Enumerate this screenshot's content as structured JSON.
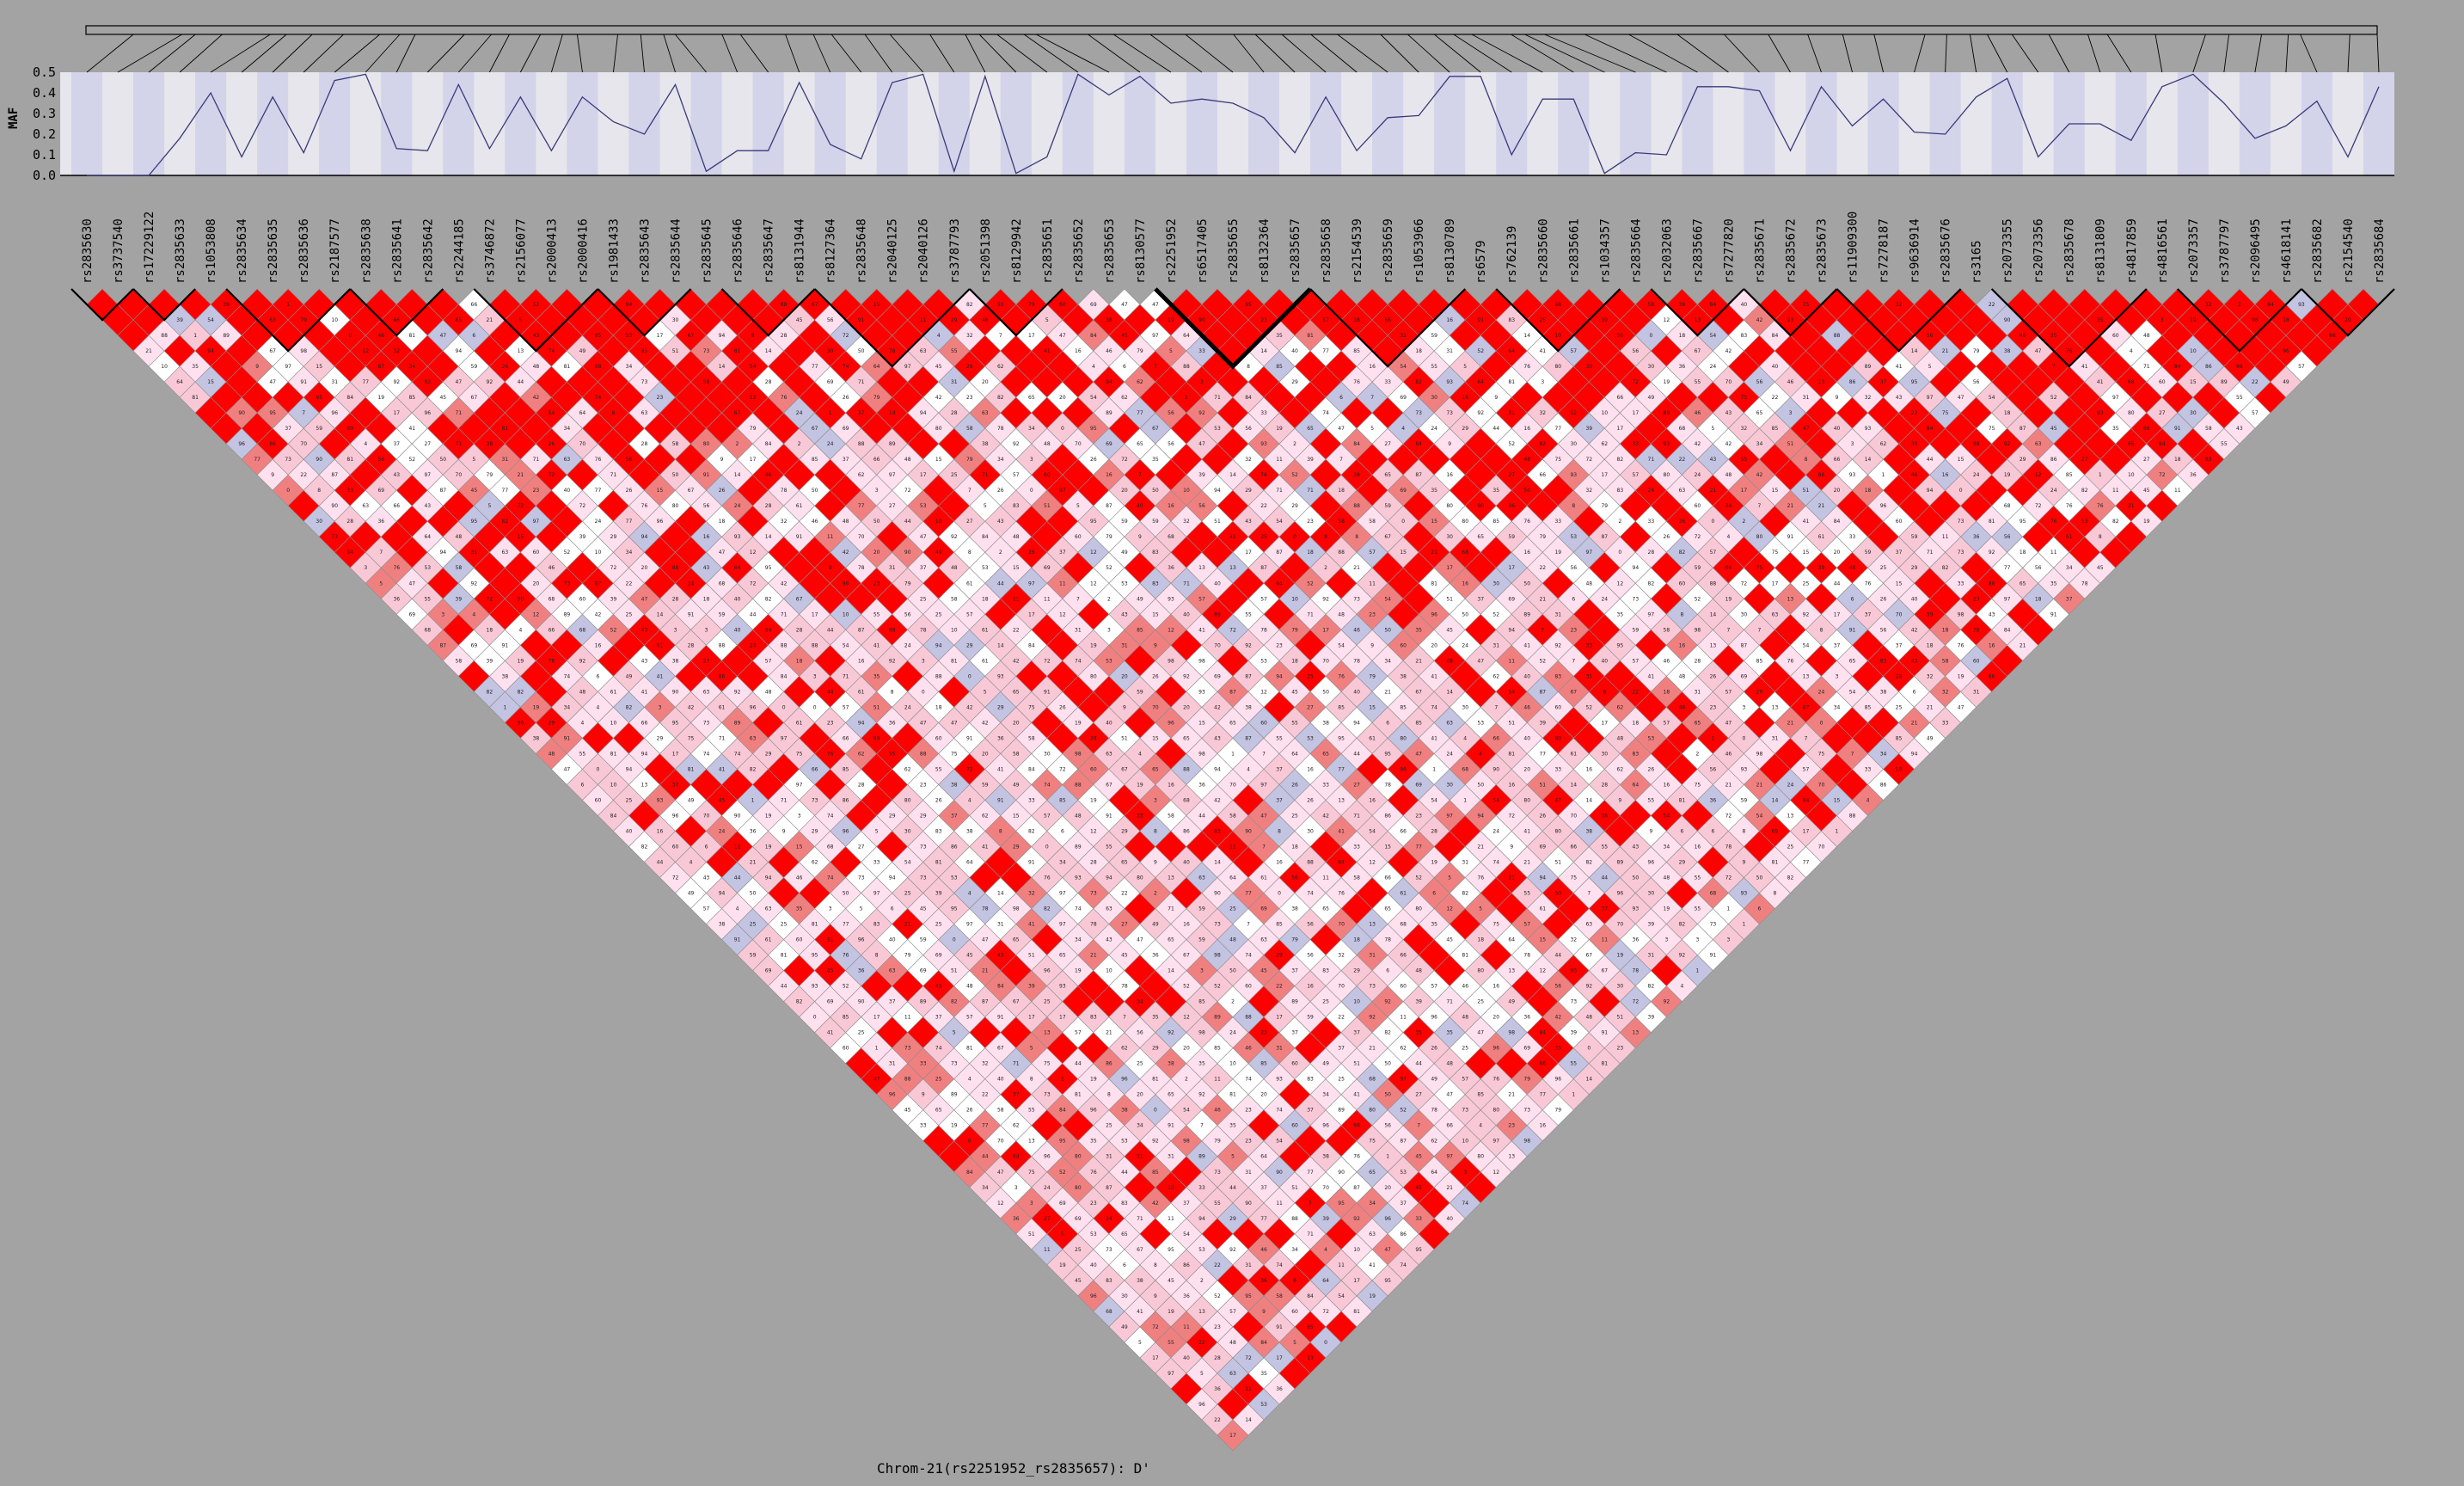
{
  "chart_data": {
    "type": "heatmap",
    "title": "Chrom-21(rs2251952_rs2835657): D'",
    "maf_axis_label": "MAF",
    "maf_ticks": [
      "0.5",
      "0.4",
      "0.3",
      "0.2",
      "0.1",
      "0.0"
    ],
    "maf_ylim": [
      0,
      0.5
    ],
    "snps": [
      "rs2835630",
      "rs3737540",
      "rs17229122",
      "rs2835633",
      "rs1053808",
      "rs2835634",
      "rs2835635",
      "rs2835636",
      "rs2187577",
      "rs2835638",
      "rs2835641",
      "rs2835642",
      "rs2244185",
      "rs3746872",
      "rs2156077",
      "rs2000413",
      "rs2000416",
      "rs1981433",
      "rs2835643",
      "rs2835644",
      "rs2835645",
      "rs2835646",
      "rs2835647",
      "rs8131944",
      "rs8127364",
      "rs2835648",
      "rs2040125",
      "rs2040126",
      "rs3787793",
      "rs2051398",
      "rs8129942",
      "rs2835651",
      "rs2835652",
      "rs2835653",
      "rs8130577",
      "rs2251952",
      "rs6517405",
      "rs2835655",
      "rs8132364",
      "rs2835657",
      "rs2835658",
      "rs2154539",
      "rs2835659",
      "rs1053966",
      "rs8130789",
      "rs6579",
      "rs762139",
      "rs2835660",
      "rs2835661",
      "rs1034357",
      "rs2835664",
      "rs2032063",
      "rs2835667",
      "rs7277820",
      "rs2835671",
      "rs2835672",
      "rs2835673",
      "rs11909300",
      "rs7278187",
      "rs9636914",
      "rs2835676",
      "rs3165",
      "rs2073355",
      "rs2073356",
      "rs2835678",
      "rs8131809",
      "rs4817859",
      "rs4816561",
      "rs2073357",
      "rs3787797",
      "rs2096495",
      "rs4618141",
      "rs2835682",
      "rs2154540",
      "rs2835684"
    ],
    "maf": [
      0.0,
      0.0,
      0.0,
      0.18,
      0.4,
      0.09,
      0.38,
      0.11,
      0.46,
      0.49,
      0.13,
      0.12,
      0.44,
      0.13,
      0.38,
      0.12,
      0.38,
      0.26,
      0.2,
      0.44,
      0.02,
      0.12,
      0.12,
      0.45,
      0.15,
      0.08,
      0.45,
      0.49,
      0.02,
      0.48,
      0.01,
      0.09,
      0.49,
      0.39,
      0.48,
      0.35,
      0.37,
      0.35,
      0.28,
      0.11,
      0.38,
      0.12,
      0.28,
      0.29,
      0.48,
      0.48,
      0.1,
      0.37,
      0.37,
      0.01,
      0.11,
      0.1,
      0.43,
      0.43,
      0.41,
      0.12,
      0.43,
      0.24,
      0.37,
      0.21,
      0.2,
      0.38,
      0.47,
      0.09,
      0.25,
      0.25,
      0.17,
      0.43,
      0.49,
      0.35,
      0.18,
      0.24,
      0.36,
      0.09,
      0.43
    ],
    "blocks": [
      [
        0,
        1
      ],
      [
        2,
        3
      ],
      [
        5,
        8
      ],
      [
        9,
        11
      ],
      [
        13,
        16
      ],
      [
        17,
        19
      ],
      [
        21,
        23
      ],
      [
        24,
        28
      ],
      [
        29,
        31
      ],
      [
        35,
        39
      ],
      [
        40,
        44
      ],
      [
        46,
        49
      ],
      [
        51,
        53
      ],
      [
        54,
        56
      ],
      [
        57,
        60
      ],
      [
        62,
        66
      ],
      [
        68,
        71
      ],
      [
        72,
        74
      ]
    ],
    "color_scale": {
      "high": "#ff0000",
      "mid": "#f08080",
      "low": "#ffe0ef",
      "white": "#ffffff",
      "uninformative": "#c3c3e2"
    }
  }
}
